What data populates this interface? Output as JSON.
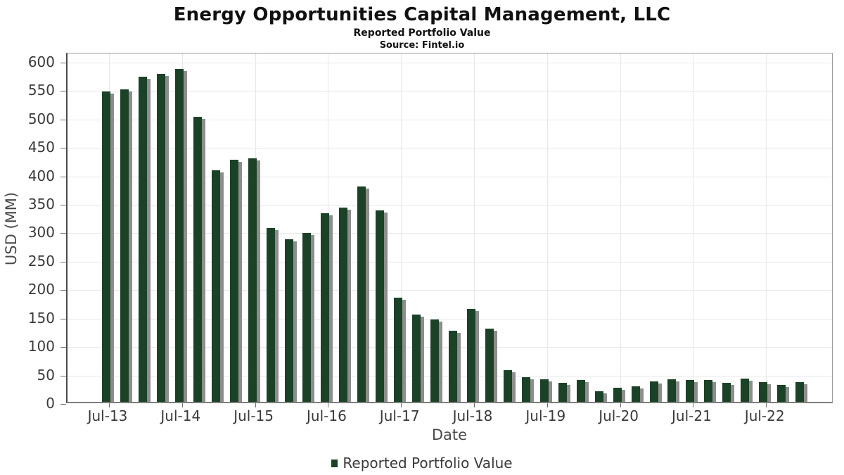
{
  "header": {
    "title": "Energy Opportunities Capital Management, LLC",
    "subtitle": "Reported Portfolio Value",
    "source": "Source: Fintel.io"
  },
  "legend": {
    "label": "Reported Portfolio Value",
    "swatch_color": "#1b4226",
    "swatch_icon": "square-icon"
  },
  "colors": {
    "bar": "#1b4226",
    "bar_shadow": "#8d8d8d",
    "grid": "#e7e7e7",
    "tick_text": "#3a3a3a"
  },
  "chart_data": {
    "type": "bar",
    "title": "Energy Opportunities Capital Management, LLC",
    "subtitle": "Reported Portfolio Value",
    "source": "Source: Fintel.io",
    "xlabel": "Date",
    "ylabel": "USD (MM)",
    "ylim": [
      0,
      616
    ],
    "y_ticks": [
      0,
      50,
      100,
      150,
      200,
      250,
      300,
      350,
      400,
      450,
      500,
      550,
      600
    ],
    "x_tick_labels": [
      "Jul-13",
      "Jul-14",
      "Jul-15",
      "Jul-16",
      "Jul-17",
      "Jul-18",
      "Jul-19",
      "Jul-20",
      "Jul-21",
      "Jul-22"
    ],
    "grid": true,
    "legend_position": "bottom",
    "series_name": "Reported Portfolio Value",
    "categories": [
      "Jun-13",
      "Sep-13",
      "Dec-13",
      "Mar-14",
      "Jun-14",
      "Sep-14",
      "Dec-14",
      "Mar-15",
      "Jun-15",
      "Sep-15",
      "Dec-15",
      "Mar-16",
      "Jun-16",
      "Sep-16",
      "Dec-16",
      "Mar-17",
      "Jun-17",
      "Sep-17",
      "Dec-17",
      "Mar-18",
      "Jun-18",
      "Sep-18",
      "Dec-18",
      "Mar-19",
      "Jun-19",
      "Sep-19",
      "Dec-19",
      "Mar-20",
      "Jun-20",
      "Sep-20",
      "Dec-20",
      "Mar-21",
      "Jun-21",
      "Sep-21",
      "Dec-21",
      "Mar-22",
      "Jun-22",
      "Sep-22",
      "Dec-22"
    ],
    "values": [
      545,
      549,
      572,
      576,
      585,
      501,
      407,
      425,
      428,
      305,
      286,
      297,
      331,
      341,
      378,
      337,
      183,
      153,
      145,
      125,
      163,
      129,
      56,
      43,
      40,
      34,
      38,
      18,
      25,
      27,
      36,
      39,
      38,
      38,
      34,
      41,
      35,
      30,
      35
    ]
  }
}
